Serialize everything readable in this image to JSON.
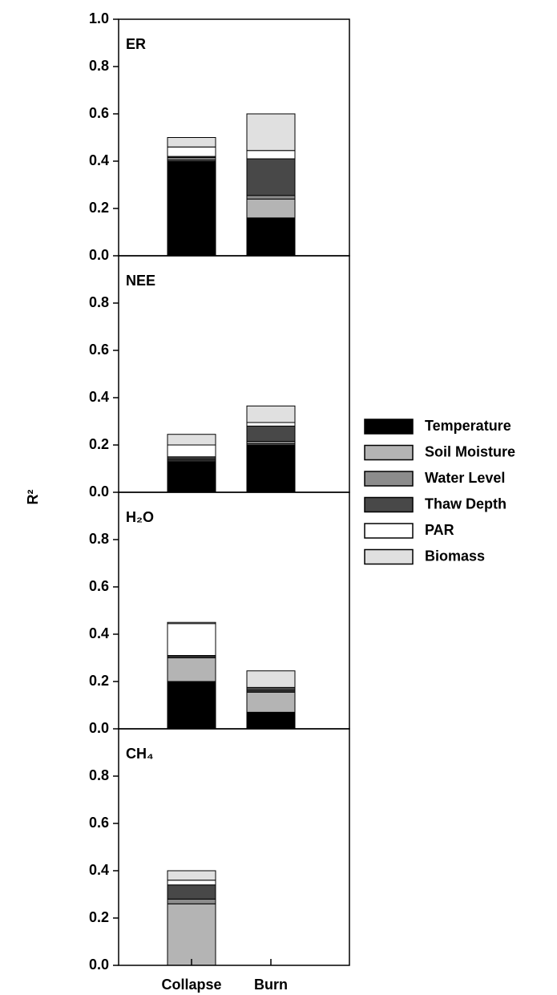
{
  "ylabel": "R²",
  "legend": [
    {
      "name": "Temperature",
      "color": "#000000"
    },
    {
      "name": "Soil Moisture",
      "color": "#b4b4b4"
    },
    {
      "name": "Water Level",
      "color": "#8c8c8c"
    },
    {
      "name": "Thaw Depth",
      "color": "#484848"
    },
    {
      "name": "PAR",
      "color": "#ffffff"
    },
    {
      "name": "Biomass",
      "color": "#e0e0e0"
    }
  ],
  "chart_data": [
    {
      "type": "bar",
      "title": "ER",
      "series": [
        {
          "values": [
            0.4,
            0.16
          ]
        },
        {
          "values": [
            0.005,
            0.08
          ]
        },
        {
          "values": [
            0.01,
            0.015
          ]
        },
        {
          "values": [
            0.005,
            0.155
          ]
        },
        {
          "values": [
            0.04,
            0.035
          ]
        },
        {
          "values": [
            0.04,
            0.155
          ]
        }
      ],
      "ylim": [
        0,
        1
      ],
      "yticks": [
        {
          "value": 0,
          "label": "0.0"
        },
        {
          "value": 0.2,
          "label": "0.2"
        },
        {
          "value": 0.4,
          "label": "0.4"
        },
        {
          "value": 0.6,
          "label": "0.6"
        },
        {
          "value": 0.8,
          "label": "0.8"
        },
        {
          "value": 1,
          "label": "1.0"
        }
      ]
    },
    {
      "type": "bar",
      "title": "NEE",
      "series": [
        {
          "values": [
            0.13,
            0.2
          ]
        },
        {
          "values": [
            0.005,
            0.005
          ]
        },
        {
          "values": [
            0.005,
            0.01
          ]
        },
        {
          "values": [
            0.01,
            0.065
          ]
        },
        {
          "values": [
            0.05,
            0.015
          ]
        },
        {
          "values": [
            0.045,
            0.07
          ]
        }
      ],
      "ylim": [
        0,
        1
      ],
      "yticks": [
        {
          "value": 0,
          "label": "0.0"
        },
        {
          "value": 0.2,
          "label": "0.2"
        },
        {
          "value": 0.4,
          "label": "0.4"
        },
        {
          "value": 0.6,
          "label": "0.6"
        },
        {
          "value": 0.8,
          "label": "0.8"
        }
      ]
    },
    {
      "type": "bar",
      "title": "H₂O",
      "series": [
        {
          "values": [
            0.2,
            0.07
          ]
        },
        {
          "values": [
            0.1,
            0.085
          ]
        },
        {
          "values": [
            0.005,
            0.005
          ]
        },
        {
          "values": [
            0.005,
            0.01
          ]
        },
        {
          "values": [
            0.135,
            0.005
          ]
        },
        {
          "values": [
            0.005,
            0.07
          ]
        }
      ],
      "ylim": [
        0,
        1
      ],
      "yticks": [
        {
          "value": 0,
          "label": "0.0"
        },
        {
          "value": 0.2,
          "label": "0.2"
        },
        {
          "value": 0.4,
          "label": "0.4"
        },
        {
          "value": 0.6,
          "label": "0.6"
        },
        {
          "value": 0.8,
          "label": "0.8"
        }
      ]
    },
    {
      "type": "bar",
      "title": "CH₄",
      "categories": [
        "Collapse",
        "Burn"
      ],
      "series": [
        {
          "values": [
            0,
            0
          ]
        },
        {
          "values": [
            0.26,
            0
          ]
        },
        {
          "values": [
            0.02,
            0
          ]
        },
        {
          "values": [
            0.06,
            0
          ]
        },
        {
          "values": [
            0.02,
            0
          ]
        },
        {
          "values": [
            0.04,
            0
          ]
        }
      ],
      "ylim": [
        0,
        1
      ],
      "yticks": [
        {
          "value": 0,
          "label": "0.0"
        },
        {
          "value": 0.2,
          "label": "0.2"
        },
        {
          "value": 0.4,
          "label": "0.4"
        },
        {
          "value": 0.6,
          "label": "0.6"
        },
        {
          "value": 0.8,
          "label": "0.8"
        }
      ]
    }
  ]
}
